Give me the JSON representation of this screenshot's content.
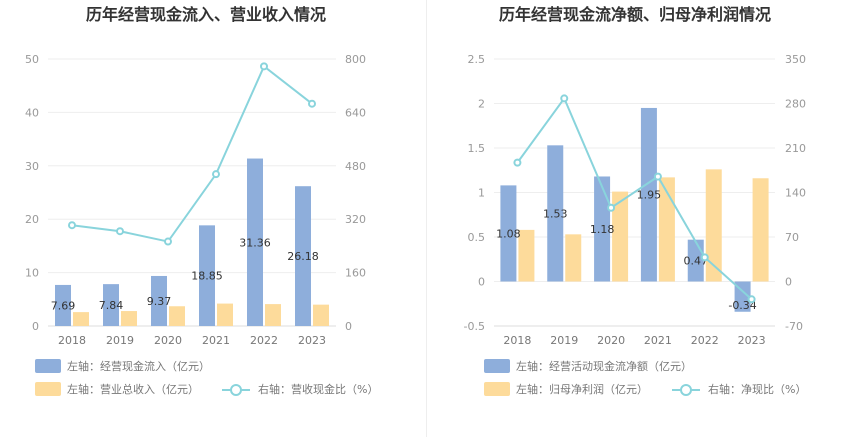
{
  "chart_data": [
    {
      "type": "bar+line",
      "title": "历年经营现金流入、营业收入情况",
      "categories": [
        "2018",
        "2019",
        "2020",
        "2021",
        "2022",
        "2023"
      ],
      "left_axis": {
        "min": 0,
        "max": 50,
        "ticks": [
          0,
          10,
          20,
          30,
          40,
          50
        ]
      },
      "right_axis": {
        "min": 0,
        "max": 800,
        "ticks": [
          0,
          160,
          320,
          480,
          640,
          800
        ]
      },
      "series": [
        {
          "name": "左轴：经营现金流入（亿元）",
          "axis": "left",
          "kind": "bar",
          "color": "#8eaedb",
          "values": [
            7.69,
            7.84,
            9.37,
            18.85,
            31.36,
            26.18
          ],
          "labels": [
            "7.69",
            "7.84",
            "9.37",
            "18.85",
            "31.36",
            "26.18"
          ]
        },
        {
          "name": "左轴：营业总收入（亿元）",
          "axis": "left",
          "kind": "bar",
          "color": "#fddb9b",
          "values": [
            2.6,
            2.8,
            3.7,
            4.2,
            4.1,
            4.0
          ]
        },
        {
          "name": "右轴：营收现金比（%）",
          "axis": "right",
          "kind": "line",
          "color": "#89d4dc",
          "values": [
            302,
            284,
            253,
            455,
            778,
            666
          ]
        }
      ]
    },
    {
      "type": "bar+line",
      "title": "历年经营现金流净额、归母净利润情况",
      "categories": [
        "2018",
        "2019",
        "2020",
        "2021",
        "2022",
        "2023"
      ],
      "left_axis": {
        "min": -0.5,
        "max": 2.5,
        "ticks": [
          -0.5,
          0,
          0.5,
          1,
          1.5,
          2,
          2.5
        ]
      },
      "right_axis": {
        "min": -70,
        "max": 350,
        "ticks": [
          -70,
          0,
          70,
          140,
          210,
          280,
          350
        ]
      },
      "series": [
        {
          "name": "左轴：经营活动现金流净额（亿元）",
          "axis": "left",
          "kind": "bar",
          "color": "#8eaedb",
          "values": [
            1.08,
            1.53,
            1.18,
            1.95,
            0.47,
            -0.34
          ],
          "labels": [
            "1.08",
            "1.53",
            "1.18",
            "1.95",
            "0.47",
            "-0.34"
          ]
        },
        {
          "name": "左轴：归母净利润（亿元）",
          "axis": "left",
          "kind": "bar",
          "color": "#fddb9b",
          "values": [
            0.58,
            0.53,
            1.01,
            1.17,
            1.26,
            1.16
          ]
        },
        {
          "name": "右轴：净现比（%）",
          "axis": "right",
          "kind": "line",
          "color": "#89d4dc",
          "values": [
            187,
            288,
            116,
            165,
            38,
            -28
          ]
        }
      ]
    }
  ]
}
